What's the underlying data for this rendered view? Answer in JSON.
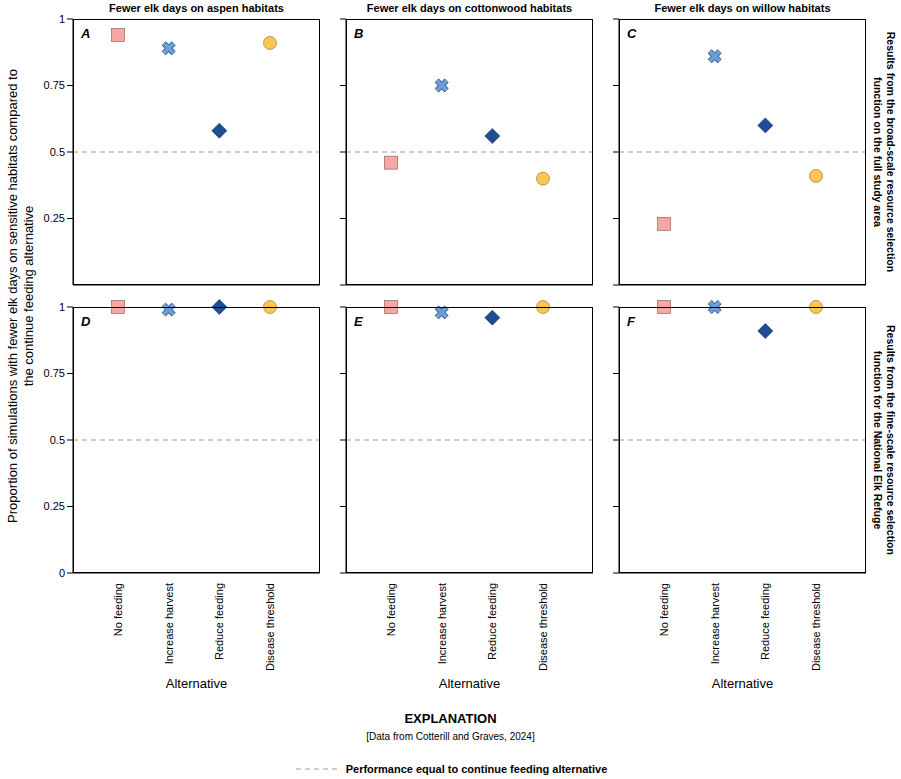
{
  "figure": {
    "ylabel": "Proportion of simulations with fewer elk days on sensitive habitats compared to the continue feeding alternative",
    "row_labels": [
      "Results from the broad-scale resource selection function on the full study area",
      "Results from the fine-scale resource selection function for the National Elk Refuge"
    ],
    "legend_title": "EXPLANATION",
    "source": "[Data from Cotterill and Graves, 2024]",
    "reference_line": {
      "value": 0.5,
      "label": "Performance equal to continue feeding alternative"
    }
  },
  "chart_data": [
    {
      "type": "scatter",
      "panel": "A",
      "title": "Fewer elk days on aspen habitats",
      "categories": [
        "No feeding",
        "Increase harvest",
        "Reduce feeding",
        "Disease threshold"
      ],
      "ylim": [
        0,
        1
      ],
      "yticks": [
        0,
        0.25,
        0.5,
        0.75,
        1
      ],
      "tick_labels": "y",
      "series": [
        {
          "name": "No feeding",
          "color": "#f4a7a7",
          "marker": "square",
          "values": [
            0.94,
            null,
            null,
            null
          ]
        },
        {
          "name": "Increase harvest",
          "color": "#6a9fd8",
          "marker": "x",
          "values": [
            null,
            0.89,
            null,
            null
          ]
        },
        {
          "name": "Reduce feeding",
          "color": "#1f4e96",
          "marker": "diamond",
          "values": [
            null,
            null,
            0.58,
            null
          ]
        },
        {
          "name": "Disease threshold",
          "color": "#f8c754",
          "marker": "circle",
          "values": [
            null,
            null,
            null,
            0.91
          ]
        }
      ]
    },
    {
      "type": "scatter",
      "panel": "B",
      "title": "Fewer elk days on cottonwood habitats",
      "categories": [
        "No feeding",
        "Increase harvest",
        "Reduce feeding",
        "Disease threshold"
      ],
      "ylim": [
        0,
        1
      ],
      "yticks": [
        0,
        0.25,
        0.5,
        0.75,
        1
      ],
      "tick_labels": false,
      "series": [
        {
          "name": "No feeding",
          "color": "#f4a7a7",
          "marker": "square",
          "values": [
            0.46,
            null,
            null,
            null
          ]
        },
        {
          "name": "Increase harvest",
          "color": "#6a9fd8",
          "marker": "x",
          "values": [
            null,
            0.75,
            null,
            null
          ]
        },
        {
          "name": "Reduce feeding",
          "color": "#1f4e96",
          "marker": "diamond",
          "values": [
            null,
            null,
            0.56,
            null
          ]
        },
        {
          "name": "Disease threshold",
          "color": "#f8c754",
          "marker": "circle",
          "values": [
            null,
            null,
            null,
            0.4
          ]
        }
      ]
    },
    {
      "type": "scatter",
      "panel": "C",
      "title": "Fewer elk days on willow habitats",
      "categories": [
        "No feeding",
        "Increase harvest",
        "Reduce feeding",
        "Disease threshold"
      ],
      "ylim": [
        0,
        1
      ],
      "yticks": [
        0,
        0.25,
        0.5,
        0.75,
        1
      ],
      "tick_labels": false,
      "series": [
        {
          "name": "No feeding",
          "color": "#f4a7a7",
          "marker": "square",
          "values": [
            0.23,
            null,
            null,
            null
          ]
        },
        {
          "name": "Increase harvest",
          "color": "#6a9fd8",
          "marker": "x",
          "values": [
            null,
            0.86,
            null,
            null
          ]
        },
        {
          "name": "Reduce feeding",
          "color": "#1f4e96",
          "marker": "diamond",
          "values": [
            null,
            null,
            0.6,
            null
          ]
        },
        {
          "name": "Disease threshold",
          "color": "#f8c754",
          "marker": "circle",
          "values": [
            null,
            null,
            null,
            0.41
          ]
        }
      ]
    },
    {
      "type": "scatter",
      "panel": "D",
      "xlabel": "Alternative",
      "categories": [
        "No feeding",
        "Increase harvest",
        "Reduce feeding",
        "Disease threshold"
      ],
      "ylim": [
        0,
        1
      ],
      "yticks": [
        0,
        0.25,
        0.5,
        0.75,
        1
      ],
      "tick_labels": true,
      "series": [
        {
          "name": "No feeding",
          "color": "#f4a7a7",
          "marker": "square",
          "values": [
            1,
            null,
            null,
            null
          ]
        },
        {
          "name": "Increase harvest",
          "color": "#6a9fd8",
          "marker": "x",
          "values": [
            null,
            0.99,
            null,
            null
          ]
        },
        {
          "name": "Reduce feeding",
          "color": "#1f4e96",
          "marker": "diamond",
          "values": [
            null,
            null,
            1,
            null
          ]
        },
        {
          "name": "Disease threshold",
          "color": "#f8c754",
          "marker": "circle",
          "values": [
            null,
            null,
            null,
            1
          ]
        }
      ]
    },
    {
      "type": "scatter",
      "panel": "E",
      "xlabel": "Alternative",
      "categories": [
        "No feeding",
        "Increase harvest",
        "Reduce feeding",
        "Disease threshold"
      ],
      "ylim": [
        0,
        1
      ],
      "yticks": [
        0,
        0.25,
        0.5,
        0.75,
        1
      ],
      "tick_labels": "x",
      "series": [
        {
          "name": "No feeding",
          "color": "#f4a7a7",
          "marker": "square",
          "values": [
            1,
            null,
            null,
            null
          ]
        },
        {
          "name": "Increase harvest",
          "color": "#6a9fd8",
          "marker": "x",
          "values": [
            null,
            0.98,
            null,
            null
          ]
        },
        {
          "name": "Reduce feeding",
          "color": "#1f4e96",
          "marker": "diamond",
          "values": [
            null,
            null,
            0.96,
            null
          ]
        },
        {
          "name": "Disease threshold",
          "color": "#f8c754",
          "marker": "circle",
          "values": [
            null,
            null,
            null,
            1
          ]
        }
      ]
    },
    {
      "type": "scatter",
      "panel": "F",
      "xlabel": "Alternative",
      "categories": [
        "No feeding",
        "Increase harvest",
        "Reduce feeding",
        "Disease threshold"
      ],
      "ylim": [
        0,
        1
      ],
      "yticks": [
        0,
        0.25,
        0.5,
        0.75,
        1
      ],
      "tick_labels": "x",
      "series": [
        {
          "name": "No feeding",
          "color": "#f4a7a7",
          "marker": "square",
          "values": [
            1,
            null,
            null,
            null
          ]
        },
        {
          "name": "Increase harvest",
          "color": "#6a9fd8",
          "marker": "x",
          "values": [
            null,
            1,
            null,
            null
          ]
        },
        {
          "name": "Reduce feeding",
          "color": "#1f4e96",
          "marker": "diamond",
          "values": [
            null,
            null,
            0.91,
            null
          ]
        },
        {
          "name": "Disease threshold",
          "color": "#f8c754",
          "marker": "circle",
          "values": [
            null,
            null,
            null,
            1
          ]
        }
      ]
    }
  ]
}
